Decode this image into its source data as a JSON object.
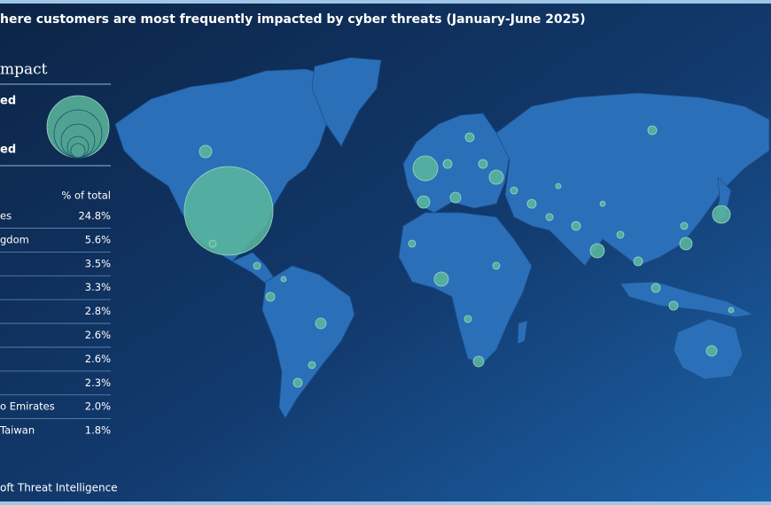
{
  "title": "here customers are most frequently impacted by cyber threats  (January-June 2025)",
  "legend": {
    "title": "mpact",
    "labels": [
      "ed",
      "ed"
    ]
  },
  "table": {
    "header": "% of total",
    "rows": [
      {
        "name": "es",
        "value": "24.8%"
      },
      {
        "name": "gdom",
        "value": "5.6%"
      },
      {
        "name": null,
        "value": "3.5%"
      },
      {
        "name": null,
        "value": "3.3%"
      },
      {
        "name": null,
        "value": "2.8%"
      },
      {
        "name": null,
        "value": "2.6%"
      },
      {
        "name": null,
        "value": "2.6%"
      },
      {
        "name": null,
        "value": "2.3%"
      },
      {
        "name": "o Emirates",
        "value": "2.0%"
      },
      {
        "name": "Taiwan",
        "value": "1.8%"
      }
    ]
  },
  "footer": "oft Threat Intelligence"
}
